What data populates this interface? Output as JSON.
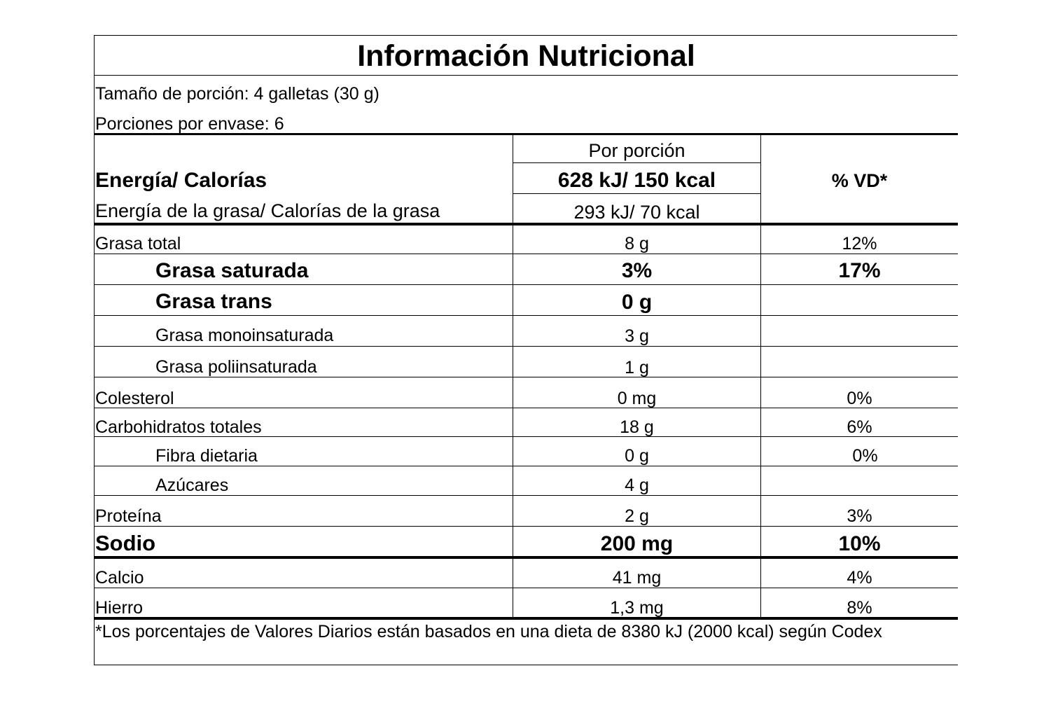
{
  "title": "Información Nutricional",
  "serving_size": "Tamaño de porción: 4 galletas (30 g)",
  "servings_per_container": "Porciones por envase: 6",
  "header": {
    "per_serving": "Por porción",
    "dv": "% VD*",
    "energy_label": "Energía/ Calorías",
    "energy_value": "628 kJ/ 150 kcal",
    "fat_energy_label": "Energía de la grasa/ Calorías de la grasa",
    "fat_energy_value": "293 kJ/ 70 kcal"
  },
  "rows": [
    {
      "name": "Grasa total",
      "amount": "8 g",
      "dv": "12%"
    },
    {
      "name": "Grasa saturada",
      "amount": "3%",
      "dv": "17%"
    },
    {
      "name": "Grasa trans",
      "amount": "0 g",
      "dv": ""
    },
    {
      "name": "Grasa monoinsaturada",
      "amount": "3 g",
      "dv": ""
    },
    {
      "name": "Grasa poliinsaturada",
      "amount": "1 g",
      "dv": ""
    },
    {
      "name": "Colesterol",
      "amount": "0 mg",
      "dv": "0%"
    },
    {
      "name": "Carbohidratos totales",
      "amount": "18 g",
      "dv": "6%"
    },
    {
      "name": "Fibra dietaria",
      "amount": "0 g",
      "dv": "0%"
    },
    {
      "name": "Azúcares",
      "amount": "4 g",
      "dv": ""
    },
    {
      "name": "Proteína",
      "amount": "2 g",
      "dv": "3%"
    },
    {
      "name": "Sodio",
      "amount": "200 mg",
      "dv": "10%"
    },
    {
      "name": "Calcio",
      "amount": "41 mg",
      "dv": "4%"
    },
    {
      "name": "Hierro",
      "amount": "1,3  mg",
      "dv": "8%"
    }
  ],
  "footnote": "*Los porcentajes de Valores Diarios están basados en una dieta de 8380 kJ (2000 kcal) según Codex"
}
